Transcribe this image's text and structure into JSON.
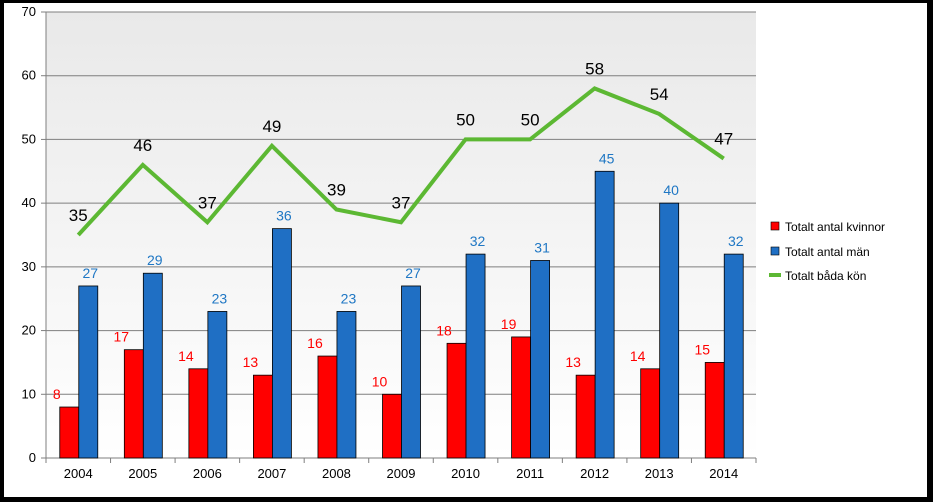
{
  "chart_data": {
    "type": "bar",
    "categories": [
      "2004",
      "2005",
      "2006",
      "2007",
      "2008",
      "2009",
      "2010",
      "2011",
      "2012",
      "2013",
      "2014"
    ],
    "series": [
      {
        "name": "Totalt antal kvinnor",
        "kind": "bar",
        "color": "#ff0000",
        "values": [
          8,
          17,
          14,
          13,
          16,
          10,
          18,
          19,
          13,
          14,
          15
        ]
      },
      {
        "name": "Totalt antal män",
        "kind": "bar",
        "color": "#1f6fc4",
        "values": [
          27,
          29,
          23,
          36,
          23,
          27,
          32,
          31,
          45,
          40,
          32
        ]
      },
      {
        "name": "Totalt båda kön",
        "kind": "line",
        "color": "#5cb833",
        "values": [
          35,
          46,
          37,
          49,
          39,
          37,
          50,
          50,
          58,
          54,
          47
        ]
      }
    ],
    "yticks": [
      0,
      10,
      20,
      30,
      40,
      50,
      60,
      70
    ],
    "ylim": [
      0,
      70
    ],
    "grid": true,
    "legend_position": "right"
  }
}
